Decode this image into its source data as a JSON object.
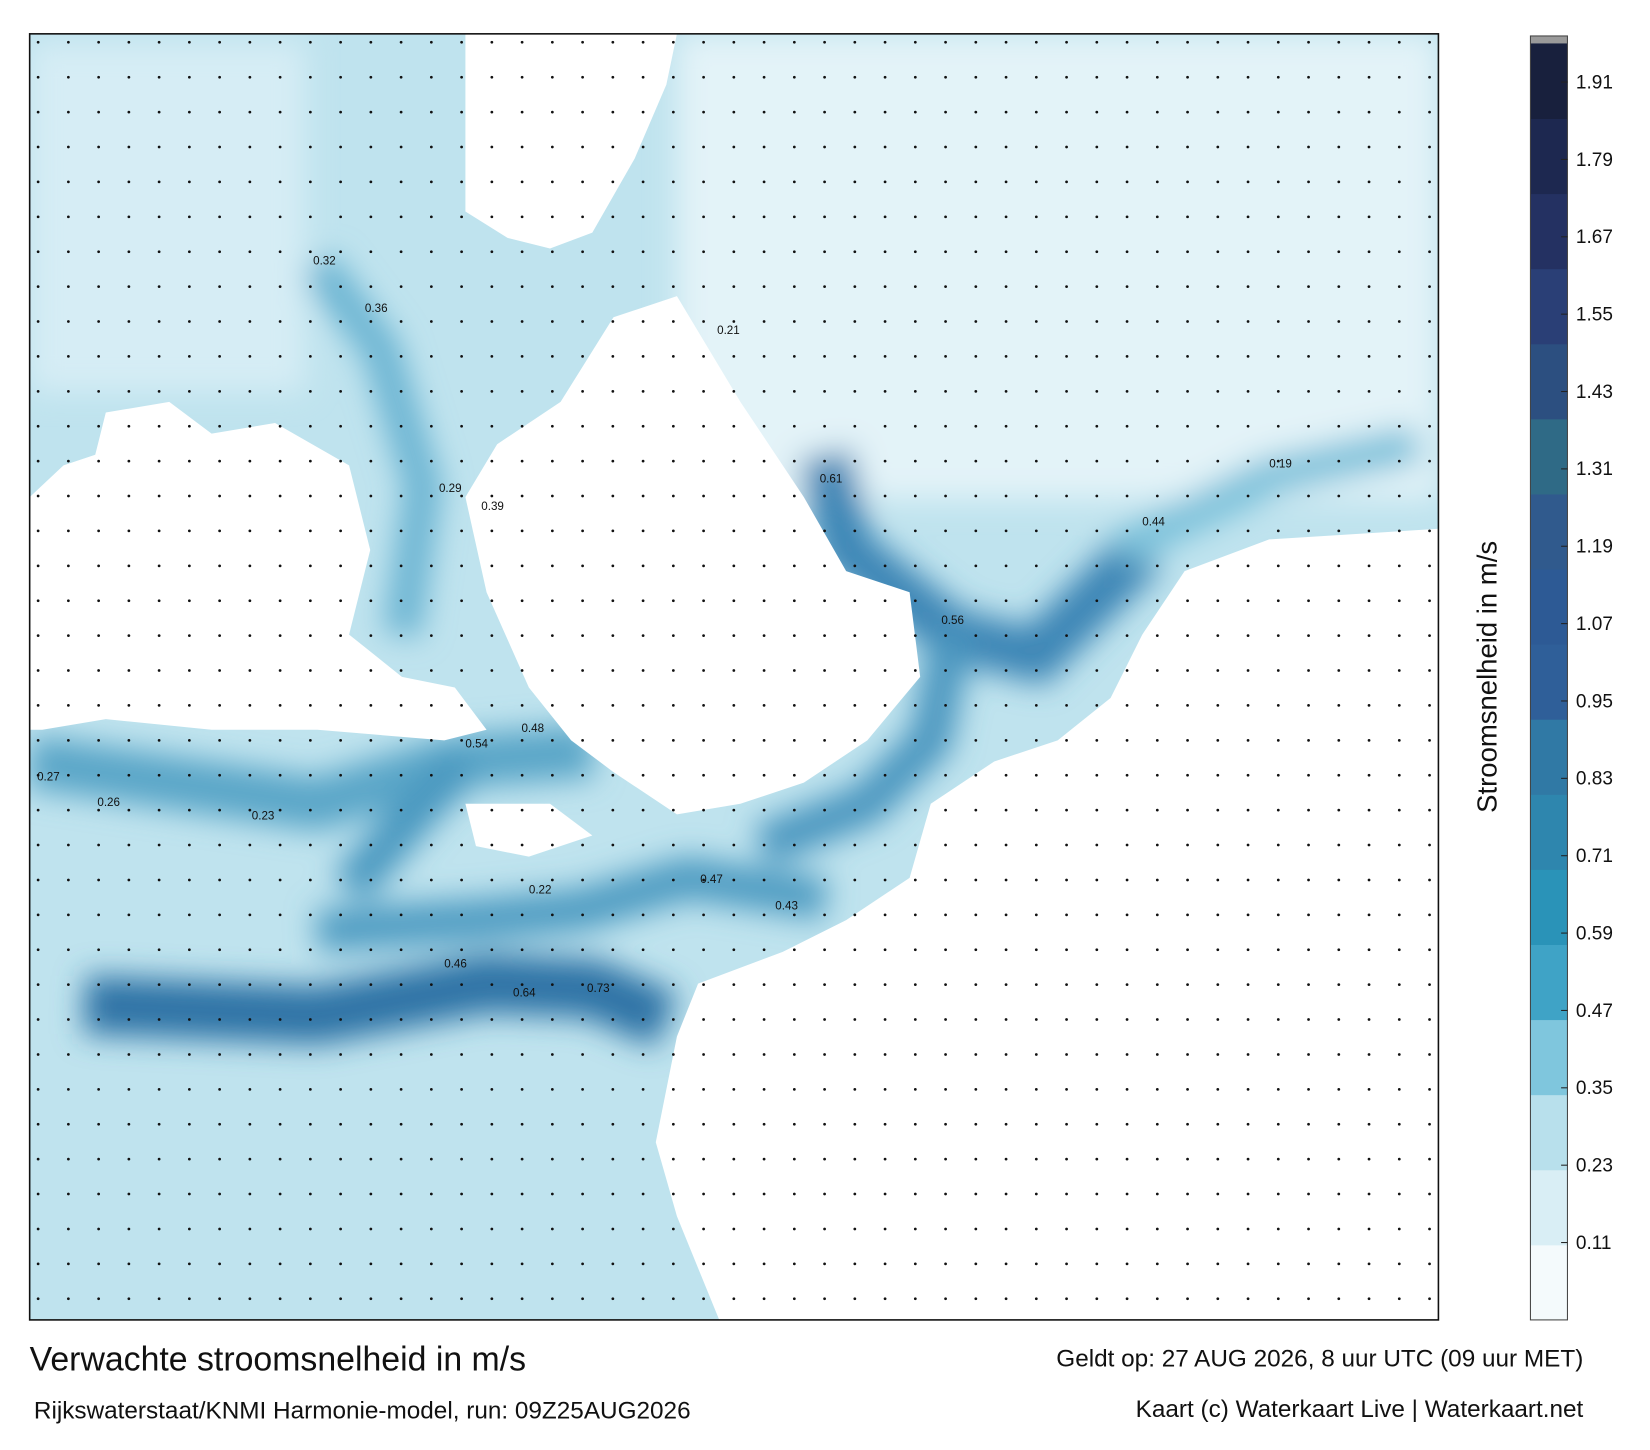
{
  "header": {
    "title": "Verwachte stroomsnelheid in m/s",
    "subtitle": "Rijkswaterstaat/KNMI Harmonie-model, run: 09Z25AUG2026",
    "valid": "Geldt op: 27 AUG 2026, 8 uur UTC (09 uur MET)",
    "credit": "Kaart (c) Waterkaart Live | Waterkaart.net"
  },
  "colorbar": {
    "label": "Stroomsnelheid in m/s",
    "clim": [
      -0.01,
      1.97
    ],
    "ticks": [
      0.11,
      0.23,
      0.35,
      0.47,
      0.59,
      0.71,
      0.83,
      0.95,
      1.07,
      1.19,
      1.31,
      1.43,
      1.55,
      1.67,
      1.79,
      1.91
    ],
    "colors": [
      "#f4fafc",
      "#d9eef5",
      "#b8e0ec",
      "#7fc6dd",
      "#3fa3c6",
      "#2a93b8",
      "#2e86ae",
      "#3079a5",
      "#2f5f99",
      "#2d5a95",
      "#305a8d",
      "#2f6a86",
      "#2c4f80",
      "#2a3f76",
      "#243162",
      "#1d2850",
      "#18203d"
    ]
  },
  "map_labels": [
    "0.73",
    "0.61",
    "0.56",
    "0.64",
    "0.54",
    "0.48",
    "0.47",
    "0.46",
    "0.44",
    "0.43",
    "0.39",
    "0.36",
    "0.32",
    "0.29",
    "0.27",
    "0.26",
    "0.23",
    "0.22",
    "0.21",
    "0.19"
  ]
}
